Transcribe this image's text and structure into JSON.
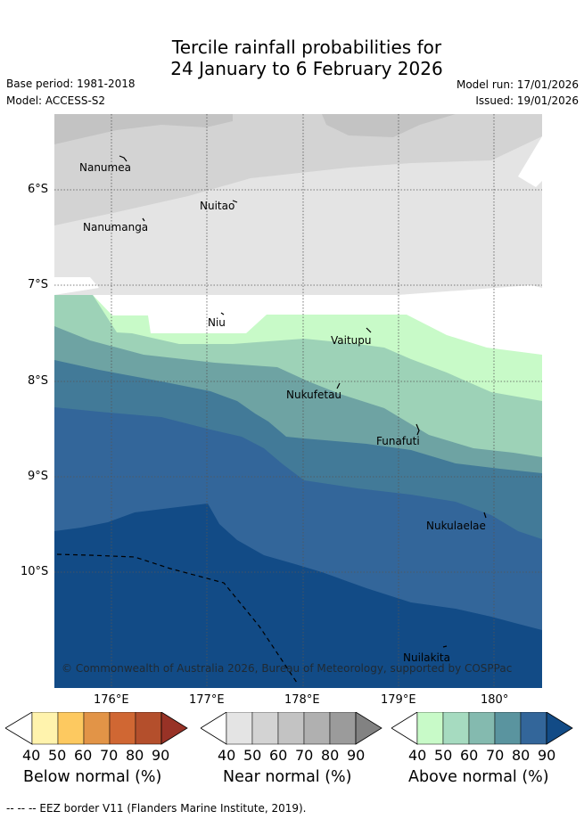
{
  "title": {
    "line1": "Tercile rainfall probabilities for",
    "line2": "24 January to 6 February 2026"
  },
  "meta": {
    "base_period": "Base period: 1981-2018",
    "model": "Model: ACCESS-S2",
    "model_run": "Model run: 17/01/2026",
    "issued": "Issued: 19/01/2026"
  },
  "map": {
    "lat_labels": [
      "6°S",
      "7°S",
      "8°S",
      "9°S",
      "10°S"
    ],
    "lon_labels": [
      "176°E",
      "177°E",
      "178°E",
      "179°E",
      "180°"
    ],
    "islands": [
      "Nanumea",
      "Nuitao",
      "Nanumanga",
      "Niu",
      "Vaitupu",
      "Nukufetau",
      "Funafuti",
      "Nukulaelae",
      "Nuilakita"
    ],
    "copyright": "© Commonwealth of Australia 2026, Bureau of Meteorology, supported by COSPPac",
    "colors": {
      "near_40_50": "#e4e4e4",
      "near_50_60": "#d3d3d3",
      "near_60_70": "#c3c3c3",
      "above_40_50": "#c8fac8",
      "above_50_60": "#9dd2b7",
      "above_60_70": "#6ea3a3",
      "above_70_80": "#427a98",
      "above_80_90": "#33669a",
      "above_90": "#124b86"
    }
  },
  "colorbars": [
    {
      "label": "Below normal (%)",
      "ticks": [
        "40",
        "50",
        "60",
        "70",
        "80",
        "90"
      ],
      "colors": [
        "#fff3ad",
        "#fdc960",
        "#e29447",
        "#d06733",
        "#b44f2c",
        "#983226"
      ]
    },
    {
      "label": "Near normal (%)",
      "ticks": [
        "40",
        "50",
        "60",
        "70",
        "80",
        "90"
      ],
      "colors": [
        "#e4e4e4",
        "#d3d3d3",
        "#c3c3c3",
        "#b0b0b0",
        "#9b9b9b",
        "#828282"
      ]
    },
    {
      "label": "Above normal (%)",
      "ticks": [
        "40",
        "50",
        "60",
        "70",
        "80",
        "90"
      ],
      "colors": [
        "#c8fac8",
        "#a6dbc0",
        "#84baaf",
        "#5a949f",
        "#33669a",
        "#124b86"
      ]
    }
  ],
  "legend_note": "--  --  -- EEZ border V11 (Flanders Marine Institute, 2019)."
}
